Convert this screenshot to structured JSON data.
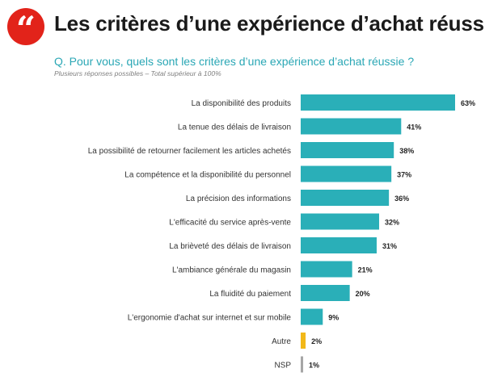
{
  "header": {
    "icon": "quote-icon",
    "title": "Les critères d’une expérience d’achat réussie",
    "question": "Q. Pour vous, quels sont les critères d’une expérience d’achat réussie ?",
    "note": "Plusieurs réponses possibles – Total supérieur à 100%"
  },
  "colors": {
    "accent": "#e2231a",
    "teal": "#2aafb8",
    "yellow": "#f2b818",
    "gray": "#a6a6a6"
  },
  "chart_data": {
    "type": "bar",
    "orientation": "horizontal",
    "title": "",
    "xlabel": "",
    "ylabel": "",
    "xlim": [
      0,
      63
    ],
    "grid": false,
    "legend": "none",
    "value_suffix": "%",
    "categories": [
      "La disponibilité des produits",
      "La tenue des délais de livraison",
      "La possibilité de retourner facilement les articles achetés",
      "La compétence et la disponibilité du personnel",
      "La précision des informations",
      "L'efficacité du service après-vente",
      "La brièveté des délais de livraison",
      "L'ambiance générale du magasin",
      "La fluidité du paiement",
      "L'ergonomie d'achat sur internet et sur mobile",
      "Autre",
      "NSP"
    ],
    "values": [
      63,
      41,
      38,
      37,
      36,
      32,
      31,
      21,
      20,
      9,
      2,
      1
    ],
    "bar_colors": [
      "teal",
      "teal",
      "teal",
      "teal",
      "teal",
      "teal",
      "teal",
      "teal",
      "teal",
      "teal",
      "yellow",
      "gray"
    ]
  }
}
